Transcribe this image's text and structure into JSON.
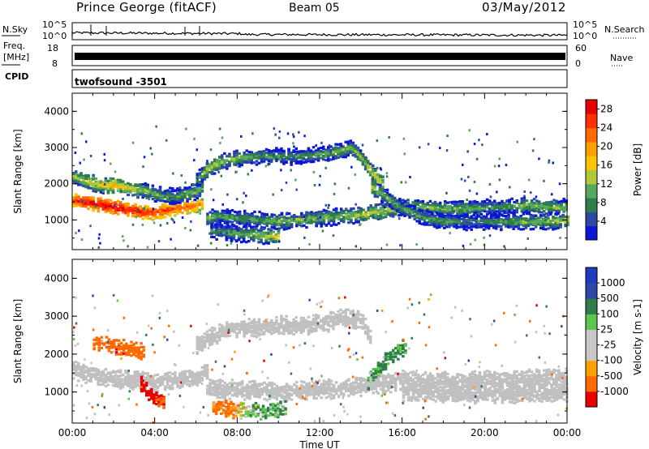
{
  "header": {
    "station": "Prince George (fitACF)",
    "beam": "Beam 05",
    "date": "03/May/2012"
  },
  "params_panel": {
    "nsky_label": "N.Sky",
    "nsky_ticks": [
      "10^5",
      "10^0"
    ],
    "nsearch_label": "N.Search",
    "nsearch_ticks": [
      "10^5",
      "10^0"
    ],
    "freq_label": "Freq.",
    "freq_unit": "[MHz]",
    "freq_ticks": [
      "18",
      "8"
    ],
    "nave_label": "Nave",
    "nave_ticks": [
      "60",
      "0"
    ],
    "cpid_label": "CPID",
    "program": "twofsound -3501"
  },
  "colors": {
    "power_scale": [
      "#0a17d6",
      "#2c49a7",
      "#2e7d4a",
      "#58a85b",
      "#b3c73a",
      "#ffc400",
      "#ff9f00",
      "#ff6a00",
      "#ff3000",
      "#e80000"
    ],
    "velocity_scale": [
      "#e80000",
      "#ff6a00",
      "#ff9f00",
      "#c8c8c8",
      "#c8c8c8",
      "#5ec64b",
      "#2e7d4a",
      "#2c49a7",
      "#1f3cc1"
    ],
    "ground_scatter": "#c0c0c0"
  },
  "chart_data": [
    {
      "type": "heatmap",
      "panel": "power",
      "ylabel": "Slant Range [km]",
      "yticks": [
        "1000",
        "2000",
        "3000",
        "4000"
      ],
      "ylim": [
        180,
        4500
      ],
      "x": [
        "00:00",
        "04:00",
        "08:00",
        "12:00",
        "16:00",
        "20:00",
        "00:00"
      ],
      "xlim_hours": [
        0,
        24
      ],
      "colorbar": {
        "label": "Power [dB]",
        "ticks": [
          "4",
          "8",
          "12",
          "16",
          "20",
          "24",
          "28"
        ],
        "range": [
          0,
          30
        ]
      },
      "bands": [
        {
          "t": [
            0,
            0.5,
            1,
            1.5,
            2,
            2.5,
            3,
            3.5,
            4,
            4.5,
            5,
            5.5,
            6,
            6.3
          ],
          "range_km": [
            1550,
            1500,
            1450,
            1400,
            1350,
            1300,
            1250,
            1200,
            1200,
            1250,
            1300,
            1350,
            1400,
            1450
          ],
          "power_db": [
            26,
            28,
            29,
            29,
            30,
            28,
            28,
            27,
            26,
            26,
            24,
            24,
            22,
            20
          ]
        },
        {
          "t": [
            0,
            0.5,
            1,
            1.5,
            2,
            2.5,
            3,
            3.5,
            4,
            4.5,
            5,
            5.5,
            6,
            6.3
          ],
          "range_km": [
            2200,
            2100,
            2000,
            1950,
            1950,
            1900,
            1850,
            1800,
            1700,
            1650,
            1650,
            1700,
            1800,
            1900
          ],
          "power_db": [
            12,
            14,
            15,
            16,
            18,
            16,
            14,
            12,
            12,
            10,
            10,
            12,
            12,
            10
          ]
        },
        {
          "t": [
            6,
            6.5,
            7,
            7.5,
            8,
            9,
            10,
            11,
            12,
            13,
            13.5,
            14,
            14.5,
            15
          ],
          "range_km": [
            2100,
            2400,
            2550,
            2650,
            2700,
            2750,
            2750,
            2750,
            2800,
            2900,
            3000,
            2700,
            2300,
            2000
          ],
          "power_db": [
            10,
            14,
            14,
            12,
            12,
            10,
            10,
            9,
            10,
            12,
            12,
            12,
            16,
            14
          ]
        },
        {
          "t": [
            6.5,
            7,
            8,
            9,
            10,
            11,
            12,
            13,
            14,
            15,
            16,
            17,
            18,
            19,
            20,
            21,
            22,
            23,
            24
          ],
          "range_km": [
            1050,
            1100,
            1050,
            1000,
            950,
            1000,
            1050,
            1100,
            1150,
            1250,
            1350,
            1350,
            1300,
            1300,
            1350,
            1350,
            1400,
            1350,
            1350
          ],
          "power_db": [
            12,
            10,
            10,
            10,
            12,
            12,
            12,
            12,
            14,
            14,
            14,
            12,
            12,
            12,
            10,
            10,
            12,
            12,
            12
          ]
        },
        {
          "t": [
            14.5,
            15,
            16,
            17,
            18,
            19,
            20,
            21,
            22,
            23,
            24
          ],
          "range_km": [
            1900,
            1700,
            1300,
            1050,
            950,
            950,
            950,
            950,
            950,
            950,
            1000
          ],
          "power_db": [
            14,
            12,
            10,
            10,
            10,
            8,
            8,
            10,
            12,
            12,
            14
          ]
        },
        {
          "t": [
            6.7,
            7.5,
            8.5,
            9.5,
            10
          ],
          "range_km": [
            700,
            650,
            600,
            550,
            550
          ],
          "power_db": [
            8,
            10,
            12,
            14,
            16
          ]
        }
      ]
    },
    {
      "type": "heatmap",
      "panel": "velocity",
      "ylabel": "Slant Range [km]",
      "yticks": [
        "1000",
        "2000",
        "3000",
        "4000"
      ],
      "ylim": [
        180,
        4500
      ],
      "xlabel": "Time UT",
      "x": [
        "00:00",
        "04:00",
        "08:00",
        "12:00",
        "16:00",
        "20:00",
        "00:00"
      ],
      "xlim_hours": [
        0,
        24
      ],
      "colorbar": {
        "label": "Velocity [m s-1]",
        "ticks": [
          "1000",
          "500",
          "100",
          "25",
          "-25",
          "-100",
          "-500",
          "-1000"
        ]
      },
      "bands": [
        {
          "kind": "ground",
          "t": [
            0,
            1,
            2,
            3,
            4,
            5,
            6,
            6.5
          ],
          "range_km": [
            1550,
            1450,
            1350,
            1300,
            1250,
            1300,
            1400,
            1500
          ]
        },
        {
          "kind": "ground",
          "t": [
            6,
            7,
            8,
            9,
            10,
            11,
            12,
            13,
            14,
            14.5
          ],
          "range_km": [
            2200,
            2550,
            2700,
            2700,
            2750,
            2750,
            2800,
            2950,
            2900,
            2300
          ]
        },
        {
          "kind": "ground",
          "t": [
            6.5,
            8,
            10,
            12,
            14,
            16,
            18,
            20,
            22,
            24
          ],
          "range_km": [
            1100,
            1050,
            1000,
            1050,
            1150,
            1300,
            1300,
            1300,
            1350,
            1350
          ]
        },
        {
          "kind": "ground",
          "t": [
            16,
            18,
            20,
            22,
            24
          ],
          "range_km": [
            1000,
            950,
            950,
            950,
            1000
          ]
        },
        {
          "kind": "ionos",
          "t": [
            1,
            1.5,
            2,
            2.5,
            3,
            3.5
          ],
          "range_km": [
            2250,
            2250,
            2200,
            2150,
            2100,
            2050
          ],
          "velocity": [
            -300,
            -400,
            -450,
            -400,
            -350,
            -300
          ]
        },
        {
          "kind": "ionos",
          "t": [
            3.3,
            3.6,
            3.9,
            4.2,
            4.5
          ],
          "range_km": [
            1200,
            1000,
            850,
            750,
            700
          ],
          "velocity": [
            -600,
            -700,
            -600,
            -500,
            -400
          ]
        },
        {
          "kind": "ionos",
          "t": [
            6.8,
            7.5,
            8.5,
            9.5,
            10.3
          ],
          "range_km": [
            600,
            550,
            500,
            500,
            550
          ],
          "velocity": [
            -150,
            -150,
            50,
            100,
            80
          ]
        },
        {
          "kind": "ionos",
          "t": [
            14.3,
            14.8,
            15.3,
            15.8,
            16.2
          ],
          "range_km": [
            1300,
            1600,
            1900,
            2100,
            2200
          ],
          "velocity": [
            80,
            150,
            200,
            120,
            60
          ]
        }
      ]
    }
  ]
}
